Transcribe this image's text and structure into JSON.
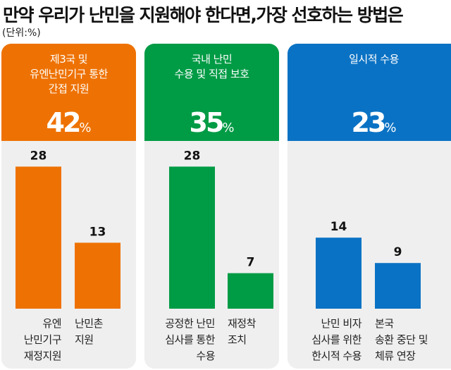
{
  "title": "만약 우리가 난민을 지원해야 한다면,가장 선호하는 방법은",
  "unit": "(단위:%)",
  "chart_data": {
    "type": "bar",
    "title": "만약 우리가 난민을 지원해야 한다면,가장 선호하는 방법은",
    "unit": "(단위:%)",
    "groups": [
      {
        "label": "제3국 및\n유엔난민기구 통한\n간접 지원",
        "total": 42,
        "color": "#ee7203",
        "categories": [
          "유엔\n난민기구\n재정지원",
          "난민촌\n지원"
        ],
        "values": [
          28,
          13
        ]
      },
      {
        "label": "국내 난민\n수용 및 직접 보호",
        "total": 35,
        "color": "#009b45",
        "categories": [
          "공정한 난민\n심사를 통한\n수용",
          "재정착\n조치"
        ],
        "values": [
          28,
          7
        ]
      },
      {
        "label": "일시적 수용",
        "total": 23,
        "color": "#0a72c4",
        "categories": [
          "난민 비자\n심사를 위한\n한시적 수용",
          "본국\n송환 중단 및\n체류 연장"
        ],
        "values": [
          14,
          9
        ]
      }
    ],
    "percent_sign": "%",
    "grid": false
  }
}
